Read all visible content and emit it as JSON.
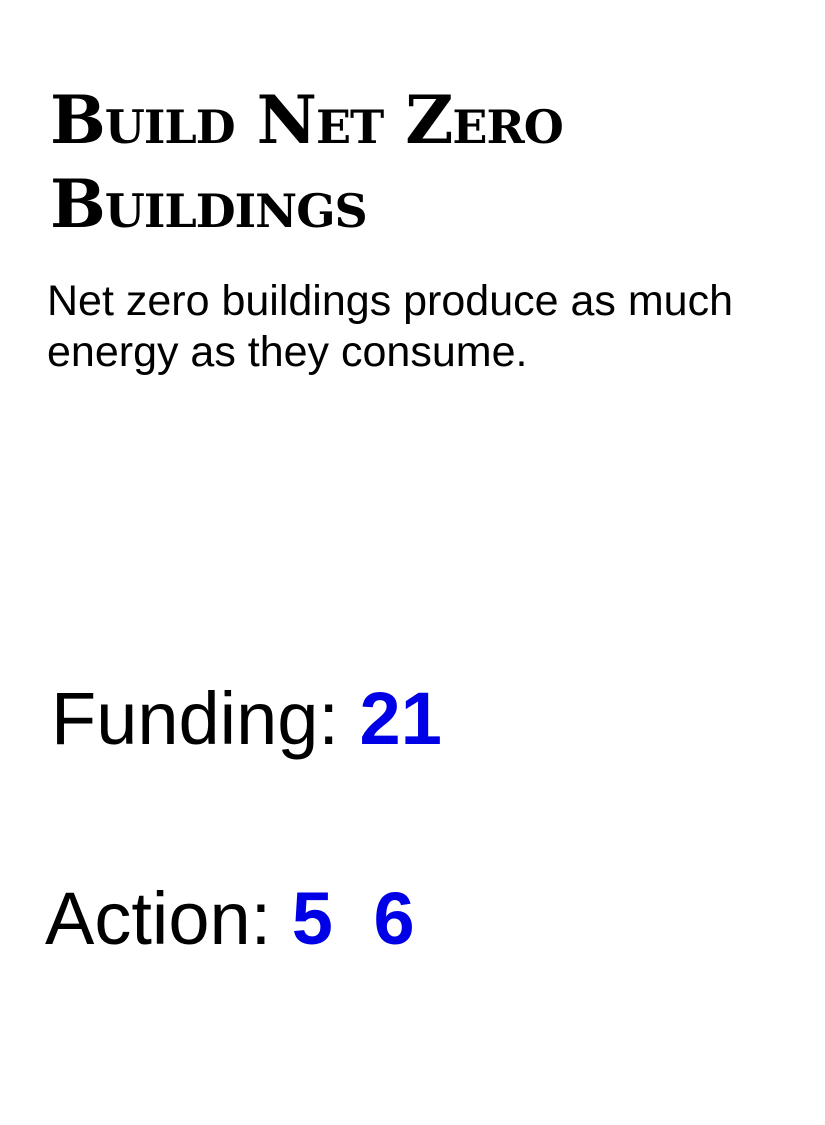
{
  "card": {
    "title_line1": "Build Net Zero",
    "title_line2": "Buildings",
    "description": "Net zero buildings produce as much energy as they consume.",
    "funding": {
      "label": "Funding:",
      "value": "21"
    },
    "action": {
      "label": "Action:",
      "values": [
        "5",
        "6"
      ]
    }
  },
  "colors": {
    "value": "#0000e6",
    "text": "#000000"
  }
}
